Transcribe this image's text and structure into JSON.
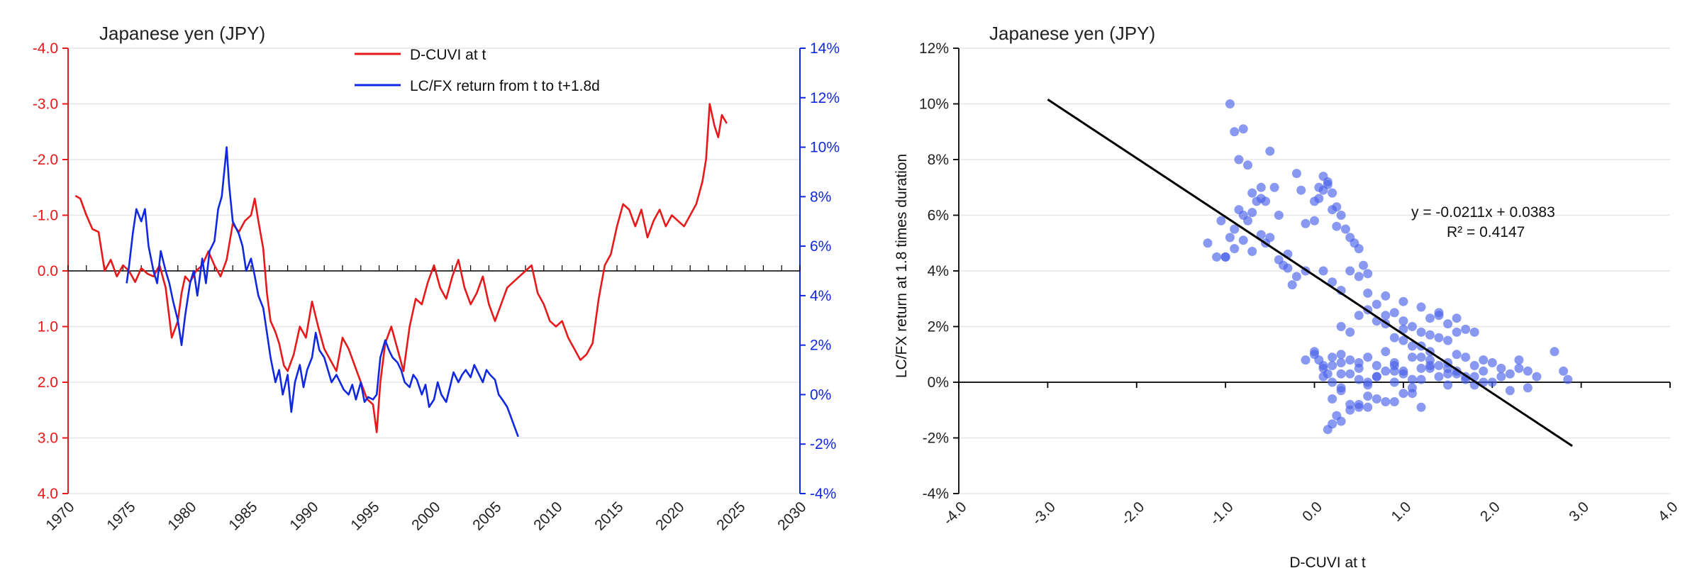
{
  "colors": {
    "red": "#e8191a",
    "blue": "#1028e0",
    "scatter": "#4a63ea",
    "black": "#000000",
    "grid": "#e6e6e6"
  },
  "chart_data": [
    {
      "type": "line",
      "title": "Japanese yen (JPY)",
      "x_ticks": [
        "1970",
        "1975",
        "1980",
        "1985",
        "1990",
        "1995",
        "2000",
        "2005",
        "2010",
        "2015",
        "2020",
        "2025",
        "2030"
      ],
      "xlim": [
        1970,
        2030
      ],
      "left_axis": {
        "ticks": [
          "-4.0",
          "-3.0",
          "-2.0",
          "-1.0",
          "0.0",
          "1.0",
          "2.0",
          "3.0",
          "4.0"
        ],
        "range": [
          -4,
          4
        ],
        "inverted": true
      },
      "right_axis": {
        "ticks": [
          "14%",
          "12%",
          "10%",
          "8%",
          "6%",
          "4%",
          "2%",
          "0%",
          "-2%",
          "-4%"
        ],
        "range": [
          -4,
          14
        ]
      },
      "legend": [
        {
          "name": "D-CUVI at t",
          "color": "red"
        },
        {
          "name": "LC/FX return from t to t+1.8d",
          "color": "blue"
        }
      ],
      "series": [
        {
          "name": "D-CUVI at t",
          "axis": "left",
          "x": [
            1970.6,
            1971.0,
            1971.5,
            1972.0,
            1972.5,
            1973.0,
            1973.5,
            1974.0,
            1974.5,
            1975.0,
            1975.5,
            1976.0,
            1976.5,
            1977.0,
            1977.5,
            1978.0,
            1978.5,
            1979.0,
            1979.3,
            1979.6,
            1980.0,
            1980.5,
            1981.0,
            1981.5,
            1982.0,
            1982.5,
            1983.0,
            1983.5,
            1984.0,
            1984.5,
            1985.0,
            1985.3,
            1985.6,
            1986.0,
            1986.3,
            1986.6,
            1987.0,
            1987.3,
            1987.7,
            1988.0,
            1988.5,
            1989.0,
            1989.5,
            1990.0,
            1990.5,
            1991.0,
            1991.5,
            1992.0,
            1992.5,
            1993.0,
            1993.5,
            1994.0,
            1994.5,
            1995.0,
            1995.3,
            1995.6,
            1996.0,
            1996.5,
            1997.0,
            1997.5,
            1998.0,
            1998.5,
            1999.0,
            1999.5,
            2000.0,
            2000.5,
            2001.0,
            2001.5,
            2002.0,
            2002.5,
            2003.0,
            2003.5,
            2004.0,
            2004.5,
            2005.0,
            2005.5,
            2006.0,
            2006.5,
            2007.0,
            2007.5,
            2008.0,
            2008.5,
            2009.0,
            2009.5,
            2010.0,
            2010.5,
            2011.0,
            2011.5,
            2012.0,
            2012.5,
            2013.0,
            2013.5,
            2014.0,
            2014.5,
            2015.0,
            2015.5,
            2016.0,
            2016.5,
            2017.0,
            2017.5,
            2018.0,
            2018.5,
            2019.0,
            2019.5,
            2020.0,
            2020.5,
            2021.0,
            2021.5,
            2022.0,
            2022.3,
            2022.6,
            2023.0,
            2023.3,
            2023.6,
            2024.0
          ],
          "values": [
            -1.35,
            -1.3,
            -1.0,
            -0.75,
            -0.7,
            0.0,
            -0.2,
            0.1,
            -0.1,
            0.0,
            0.2,
            -0.05,
            0.05,
            0.1,
            -0.1,
            0.3,
            1.2,
            0.9,
            0.4,
            0.1,
            0.2,
            0.0,
            -0.1,
            -0.35,
            -0.1,
            0.1,
            -0.2,
            -0.85,
            -0.7,
            -0.9,
            -1.0,
            -1.3,
            -0.9,
            -0.4,
            0.4,
            0.9,
            1.1,
            1.3,
            1.7,
            1.8,
            1.5,
            1.0,
            1.2,
            0.55,
            1.0,
            1.4,
            1.6,
            1.8,
            1.2,
            1.4,
            1.7,
            2.0,
            2.3,
            2.4,
            2.9,
            2.0,
            1.3,
            1.0,
            1.4,
            1.8,
            1.0,
            0.5,
            0.6,
            0.2,
            -0.1,
            0.3,
            0.5,
            0.1,
            -0.2,
            0.3,
            0.6,
            0.4,
            0.1,
            0.6,
            0.9,
            0.6,
            0.3,
            0.2,
            0.1,
            0.0,
            -0.1,
            0.4,
            0.6,
            0.9,
            1.0,
            0.9,
            1.2,
            1.4,
            1.6,
            1.5,
            1.3,
            0.5,
            -0.1,
            -0.3,
            -0.8,
            -1.2,
            -1.1,
            -0.8,
            -1.1,
            -0.6,
            -0.9,
            -1.1,
            -0.8,
            -1.0,
            -0.9,
            -0.8,
            -1.0,
            -1.2,
            -1.6,
            -2.0,
            -3.0,
            -2.6,
            -2.4,
            -2.8,
            -2.65
          ]
        },
        {
          "name": "LC/FX return from t to t+1.8d",
          "axis": "right",
          "x": [
            1974.8,
            1975.0,
            1975.3,
            1975.6,
            1976.0,
            1976.3,
            1976.6,
            1977.0,
            1977.3,
            1977.6,
            1978.0,
            1978.3,
            1978.6,
            1979.0,
            1979.3,
            1979.6,
            1980.0,
            1980.3,
            1980.6,
            1981.0,
            1981.3,
            1981.6,
            1982.0,
            1982.3,
            1982.6,
            1983.0,
            1983.2,
            1983.5,
            1984.0,
            1984.3,
            1984.6,
            1985.0,
            1985.3,
            1985.6,
            1986.0,
            1986.3,
            1986.6,
            1987.0,
            1987.3,
            1987.6,
            1988.0,
            1988.3,
            1988.6,
            1989.0,
            1989.3,
            1989.6,
            1990.0,
            1990.3,
            1990.6,
            1991.0,
            1991.3,
            1991.6,
            1992.0,
            1992.3,
            1992.6,
            1993.0,
            1993.3,
            1993.6,
            1994.0,
            1994.3,
            1994.6,
            1995.0,
            1995.3,
            1995.6,
            1996.0,
            1996.3,
            1996.6,
            1997.0,
            1997.3,
            1997.6,
            1998.0,
            1998.3,
            1998.6,
            1999.0,
            1999.3,
            1999.6,
            2000.0,
            2000.3,
            2000.6,
            2001.0,
            2001.3,
            2001.6,
            2002.0,
            2002.3,
            2002.6,
            2003.0,
            2003.3,
            2003.6,
            2004.0,
            2004.3,
            2004.6,
            2005.0,
            2005.3,
            2005.6,
            2006.0,
            2006.3,
            2006.6,
            2006.9
          ],
          "values": [
            4.5,
            5.2,
            6.5,
            7.5,
            7.0,
            7.5,
            6.0,
            5.0,
            4.5,
            5.8,
            5.0,
            4.5,
            3.8,
            3.0,
            2.0,
            3.2,
            4.5,
            5.0,
            4.0,
            5.5,
            4.5,
            5.8,
            6.2,
            7.5,
            8.0,
            10.0,
            8.5,
            7.0,
            6.5,
            6.0,
            5.0,
            5.5,
            4.8,
            4.0,
            3.5,
            2.5,
            1.5,
            0.5,
            1.0,
            0.0,
            0.8,
            -0.7,
            0.5,
            1.2,
            0.3,
            1.0,
            1.5,
            2.5,
            1.8,
            1.5,
            1.0,
            0.5,
            0.8,
            0.5,
            0.2,
            0.0,
            0.4,
            -0.2,
            0.5,
            -0.3,
            -0.1,
            -0.2,
            0.0,
            1.5,
            2.2,
            1.8,
            1.5,
            1.3,
            1.0,
            0.5,
            0.3,
            0.8,
            0.6,
            0.0,
            0.4,
            -0.5,
            -0.2,
            0.5,
            0.0,
            -0.3,
            0.3,
            0.9,
            0.5,
            0.8,
            1.0,
            0.7,
            1.2,
            0.9,
            0.5,
            1.0,
            0.8,
            0.6,
            0.0,
            -0.2,
            -0.5,
            -0.9,
            -1.3,
            -1.7
          ]
        }
      ]
    },
    {
      "type": "scatter",
      "title": "Japanese yen (JPY)",
      "xlabel": "D-CUVI at t",
      "ylabel": "LC/FX return at 1.8 times duration",
      "x_ticks": [
        "-4.0",
        "-3.0",
        "-2.0",
        "-1.0",
        "0.0",
        "1.0",
        "2.0",
        "3.0",
        "4.0"
      ],
      "y_ticks": [
        "12%",
        "10%",
        "8%",
        "6%",
        "4%",
        "2%",
        "0%",
        "-2%",
        "-4%"
      ],
      "xlim": [
        -4,
        4
      ],
      "ylim": [
        -4,
        12
      ],
      "trendline": {
        "x_from": -3.0,
        "x_to": 2.9,
        "slope": -0.0211,
        "intercept": 0.0383
      },
      "equation": "y = -0.0211x + 0.0383",
      "r_squared": "R² = 0.4147",
      "points": {
        "x": [
          -1.2,
          -1.1,
          -1.05,
          -1.0,
          -0.95,
          -0.9,
          -0.85,
          -0.8,
          -0.75,
          -0.7,
          -0.65,
          -0.6,
          -0.55,
          -0.5,
          -0.45,
          -0.4,
          -0.35,
          -0.3,
          -0.25,
          -0.2,
          -0.15,
          -0.1,
          -0.95,
          -0.9,
          -0.85,
          -0.8,
          -0.75,
          -0.7,
          -0.6,
          -0.5,
          -1.0,
          -0.9,
          -0.8,
          -0.7,
          -0.6,
          -0.55,
          -0.4,
          -0.3,
          -0.2,
          -0.1,
          0.0,
          0.05,
          0.1,
          0.15,
          0.2,
          0.25,
          0.3,
          0.35,
          0.4,
          0.45,
          0.5,
          0.55,
          0.6,
          0.0,
          0.05,
          0.1,
          0.15,
          0.2,
          0.25,
          0.1,
          0.2,
          0.3,
          0.4,
          0.5,
          0.6,
          0.7,
          0.8,
          0.9,
          1.0,
          1.1,
          1.2,
          1.3,
          1.4,
          1.5,
          1.6,
          1.7,
          1.8,
          0.3,
          0.5,
          0.7,
          0.9,
          1.1,
          1.3,
          1.5,
          0.6,
          0.8,
          1.0,
          1.2,
          1.4,
          1.6,
          -0.1,
          0.0,
          0.1,
          0.2,
          0.3,
          0.4,
          0.5,
          0.6,
          0.7,
          0.8,
          0.9,
          1.0,
          1.1,
          1.2,
          1.3,
          1.4,
          1.5,
          1.6,
          1.7,
          1.8,
          1.9,
          2.0,
          2.1,
          2.2,
          2.3,
          2.4,
          2.5,
          2.7,
          2.8,
          2.85,
          0.1,
          0.2,
          0.3,
          0.4,
          0.5,
          0.6,
          0.7,
          0.8,
          0.9,
          1.0,
          1.1,
          1.2,
          1.3,
          1.4,
          1.5,
          1.6,
          1.7,
          1.8,
          2.0,
          2.2,
          0.2,
          0.3,
          0.4,
          0.5,
          0.6,
          0.8,
          1.0,
          1.2,
          0.15,
          0.2,
          0.25,
          0.3,
          0.4,
          0.5,
          0.6,
          0.7,
          0.9,
          1.1,
          0.0,
          0.3,
          0.6,
          0.9,
          1.2,
          1.5,
          1.8,
          2.1,
          2.4,
          0.05,
          0.1,
          0.15,
          0.2,
          0.3,
          0.5,
          0.7,
          0.9,
          1.1,
          1.3,
          1.5,
          1.7,
          1.9,
          2.3,
          0.4,
          0.8,
          1.0,
          1.2,
          1.4,
          1.6,
          1.9,
          1.0,
          1.3
        ],
        "y": [
          5.0,
          4.5,
          5.8,
          4.5,
          5.2,
          5.5,
          6.2,
          6.0,
          5.8,
          6.8,
          6.5,
          7.0,
          6.5,
          8.3,
          7.0,
          6.0,
          4.2,
          4.6,
          3.5,
          7.5,
          6.9,
          5.7,
          10.0,
          9.0,
          8.0,
          9.1,
          7.8,
          6.1,
          6.6,
          5.2,
          4.5,
          4.8,
          5.1,
          4.7,
          5.3,
          5.0,
          4.4,
          4.1,
          3.8,
          4.0,
          6.5,
          7.0,
          7.4,
          7.2,
          6.8,
          6.3,
          6.0,
          5.5,
          5.2,
          5.0,
          4.8,
          4.2,
          3.9,
          5.8,
          6.6,
          6.9,
          7.1,
          6.2,
          5.6,
          4.0,
          3.6,
          3.3,
          4.0,
          3.8,
          3.2,
          2.8,
          2.4,
          2.5,
          2.2,
          2.0,
          1.8,
          2.3,
          2.4,
          2.1,
          1.8,
          1.9,
          1.8,
          2.0,
          2.4,
          2.2,
          1.6,
          1.3,
          1.1,
          1.5,
          2.6,
          3.1,
          2.9,
          2.7,
          2.5,
          2.3,
          0.8,
          1.0,
          0.6,
          0.9,
          0.7,
          0.8,
          0.5,
          0.9,
          0.6,
          1.1,
          0.7,
          0.4,
          0.9,
          0.5,
          0.8,
          0.6,
          0.7,
          0.3,
          0.9,
          0.6,
          0.4,
          0.7,
          0.5,
          0.3,
          0.8,
          0.4,
          0.2,
          1.1,
          0.4,
          0.1,
          0.2,
          0.0,
          -0.2,
          0.3,
          0.1,
          -0.1,
          0.2,
          0.4,
          0.0,
          0.3,
          -0.2,
          0.1,
          0.5,
          0.2,
          -0.1,
          0.4,
          0.1,
          0.2,
          0.0,
          -0.3,
          -0.6,
          -0.3,
          -0.8,
          -0.9,
          -0.5,
          -0.7,
          -0.4,
          -0.9,
          -1.7,
          -1.5,
          -1.2,
          -1.4,
          -1.0,
          -0.8,
          -0.9,
          -0.6,
          -0.7,
          -0.4,
          1.1,
          0.3,
          0.0,
          0.6,
          0.9,
          0.5,
          -0.1,
          0.2,
          -0.2,
          0.8,
          0.5,
          0.3,
          0.6,
          1.0,
          0.7,
          0.2,
          0.4,
          0.1,
          0.6,
          0.3,
          0.2,
          0.0,
          0.5,
          1.8,
          2.1,
          1.9,
          1.3,
          1.6,
          1.0,
          0.8,
          1.5,
          1.7
        ]
      }
    }
  ]
}
